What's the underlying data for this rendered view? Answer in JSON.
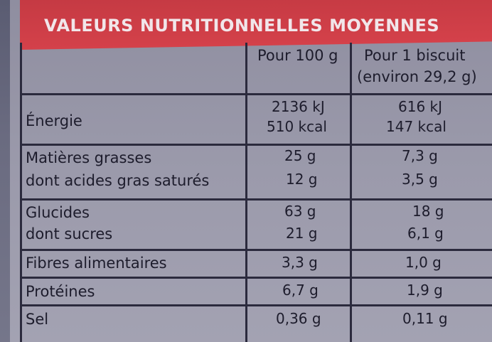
{
  "title": "VALEURS NUTRITIONNELLES MOYENNES",
  "columns": {
    "per100": "Pour 100 g",
    "perBiscuit": "Pour 1 biscuit",
    "perBiscuitNote": "(environ 29,2 g)"
  },
  "rows": {
    "energie": {
      "label": "Énergie",
      "per100_kj": "2136 kJ",
      "per100_kcal": "510 kcal",
      "biscuit_kj": "616 kJ",
      "biscuit_kcal": "147 kcal"
    },
    "matieres": {
      "label": "Matières grasses",
      "per100": "25 g",
      "biscuit": "7,3 g"
    },
    "satures": {
      "label": "dont acides gras saturés",
      "per100": "12 g",
      "biscuit": "3,5 g"
    },
    "glucides": {
      "label": "Glucides",
      "per100": "63 g",
      "biscuit": "18 g"
    },
    "sucres": {
      "label": "dont sucres",
      "per100": "21 g",
      "biscuit": "6,1 g"
    },
    "fibres": {
      "label": "Fibres alimentaires",
      "per100": "3,3 g",
      "biscuit": "1,0 g"
    },
    "proteines": {
      "label": "Protéines",
      "per100": "6,7 g",
      "biscuit": "1,9 g"
    },
    "sel": {
      "label": "Sel",
      "per100": "0,36 g",
      "biscuit": "0,11 g"
    }
  },
  "colors": {
    "header": "#d4414a",
    "label_bg": "#9b9aab",
    "ink": "#1d1c2c"
  }
}
